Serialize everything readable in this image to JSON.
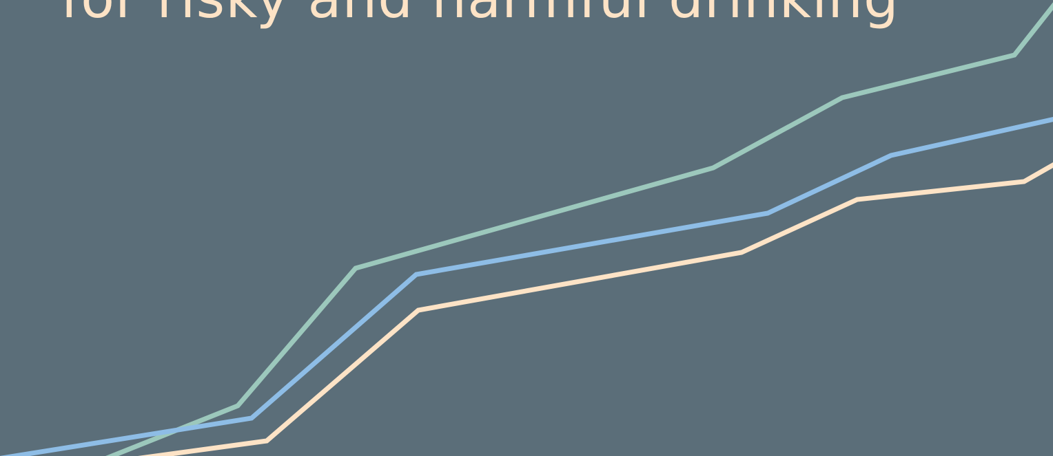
{
  "slide": {
    "headline": "for risky and harmful drinking",
    "colors": {
      "background": "#5b6e79",
      "headline_text": "#fde3c6",
      "line_green": "#9cc8bc",
      "line_blue": "#8ebde6",
      "line_cream": "#fde3c6"
    },
    "decorative_lines": [
      {
        "name": "green-line",
        "color_key": "line_green"
      },
      {
        "name": "blue-line",
        "color_key": "line_blue"
      },
      {
        "name": "cream-line",
        "color_key": "line_cream"
      }
    ]
  }
}
